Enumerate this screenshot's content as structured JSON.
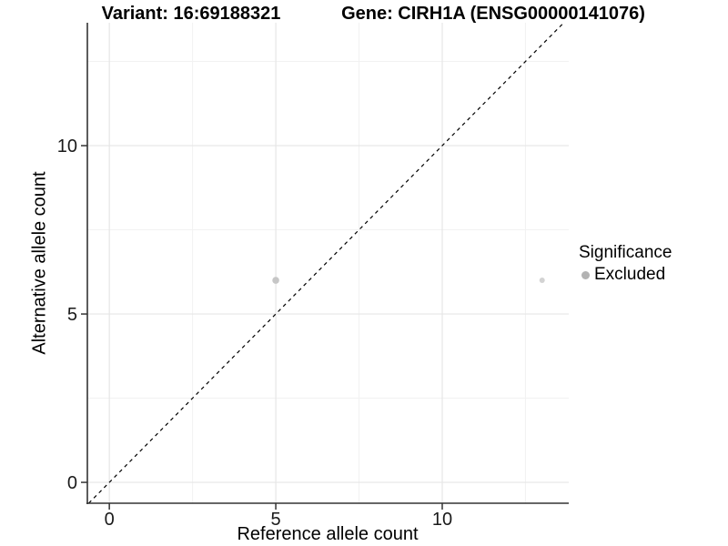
{
  "titles": {
    "left": "Variant: 16:69188321",
    "right": "Gene: CIRH1A (ENSG00000141076)"
  },
  "chart_data": {
    "type": "scatter",
    "title_left": "Variant: 16:69188321",
    "title_right": "Gene: CIRH1A (ENSG00000141076)",
    "xlabel": "Reference allele count",
    "ylabel": "Alternative allele count",
    "xlim": [
      -0.66,
      13.8
    ],
    "ylim": [
      -0.62,
      13.65
    ],
    "x_major_ticks": [
      0,
      5,
      10
    ],
    "x_minor_ticks": [
      2.5,
      7.5,
      12.5
    ],
    "y_major_ticks": [
      0,
      5,
      10
    ],
    "y_minor_ticks": [
      2.5,
      7.5,
      12.5
    ],
    "grid": true,
    "identity_line": {
      "slope": 1,
      "intercept": 0,
      "style": "dashed",
      "color": "#000000"
    },
    "points": [
      {
        "x": 5,
        "y": 6,
        "r": 3.8,
        "color": "#c6c6c6",
        "significance": "Excluded"
      },
      {
        "x": 13,
        "y": 6,
        "r": 3.0,
        "color": "#d3d3d3",
        "significance": "Excluded"
      }
    ],
    "legend": {
      "title": "Significance",
      "position": "right",
      "items": [
        {
          "label": "Excluded",
          "color": "#b3b3b3",
          "marker": "circle"
        }
      ]
    }
  },
  "colors": {
    "background": "#ffffff",
    "grid_major": "#e6e6e6",
    "grid_minor": "#f2f2f2",
    "axis_line": "#333333",
    "tick_mark": "#333333",
    "tick_text": "#1a1a1a",
    "title_text": "#000000"
  }
}
